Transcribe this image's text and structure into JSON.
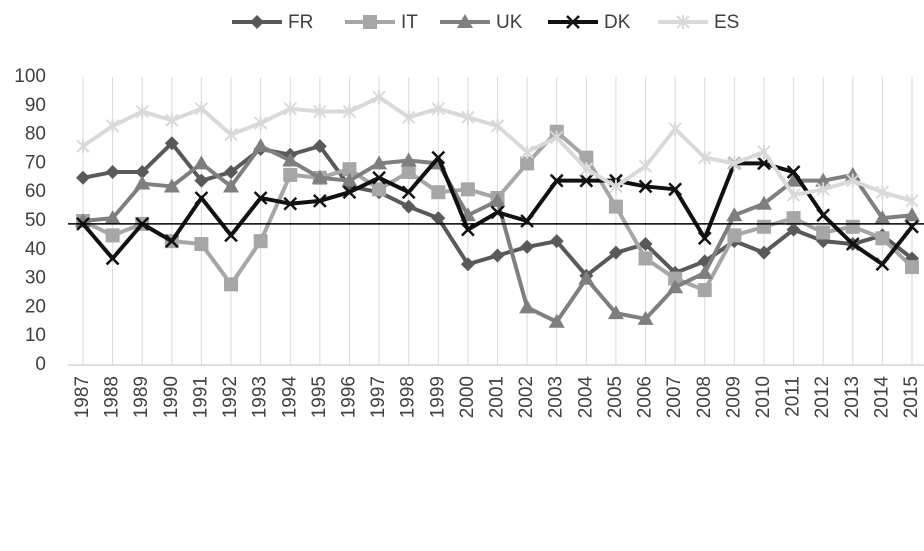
{
  "chart_data": {
    "type": "line",
    "categories": [
      "1987",
      "1988",
      "1989",
      "1990",
      "1991",
      "1992",
      "1993",
      "1994",
      "1995",
      "1996",
      "1997",
      "1998",
      "1999",
      "2000",
      "2001",
      "2002",
      "2003",
      "2004",
      "2005",
      "2006",
      "2007",
      "2008",
      "2009",
      "2010",
      "2011",
      "2012",
      "2013",
      "2014",
      "2015"
    ],
    "series": [
      {
        "name": "FR",
        "color": "#595959",
        "marker": "diamond",
        "values": [
          65,
          67,
          67,
          77,
          64,
          67,
          75,
          73,
          76,
          62,
          60,
          55,
          51,
          35,
          38,
          41,
          43,
          31,
          39,
          42,
          32,
          36,
          43,
          39,
          47,
          43,
          42,
          45,
          37
        ]
      },
      {
        "name": "IT",
        "color": "#a6a6a6",
        "marker": "square",
        "values": [
          50,
          45,
          49,
          43,
          42,
          28,
          43,
          66,
          65,
          68,
          61,
          67,
          60,
          61,
          58,
          70,
          81,
          72,
          55,
          37,
          30,
          26,
          45,
          48,
          51,
          46,
          48,
          44,
          34
        ]
      },
      {
        "name": "UK",
        "color": "#7f7f7f",
        "marker": "triangle",
        "values": [
          50,
          51,
          63,
          62,
          70,
          62,
          76,
          71,
          65,
          64,
          70,
          71,
          70,
          52,
          57,
          20,
          15,
          30,
          18,
          16,
          27,
          32,
          52,
          56,
          64,
          64,
          66,
          51,
          52
        ]
      },
      {
        "name": "DK",
        "color": "#111111",
        "marker": "x",
        "values": [
          49,
          37,
          49,
          43,
          58,
          45,
          58,
          56,
          57,
          60,
          65,
          60,
          72,
          47,
          53,
          50,
          64,
          64,
          64,
          62,
          61,
          44,
          70,
          70,
          67,
          52,
          42,
          35,
          48
        ]
      },
      {
        "name": "ES",
        "color": "#d9d9d9",
        "marker": "star",
        "values": [
          76,
          83,
          88,
          85,
          89,
          80,
          84,
          89,
          88,
          88,
          93,
          86,
          89,
          86,
          83,
          74,
          79,
          68,
          62,
          69,
          82,
          72,
          70,
          74,
          59,
          61,
          64,
          60,
          57
        ]
      }
    ],
    "reference_line": 49,
    "ylim": [
      0,
      100
    ],
    "yticks": [
      0,
      10,
      20,
      30,
      40,
      50,
      60,
      70,
      80,
      90,
      100
    ],
    "grid": "vertical",
    "legend": "top"
  }
}
